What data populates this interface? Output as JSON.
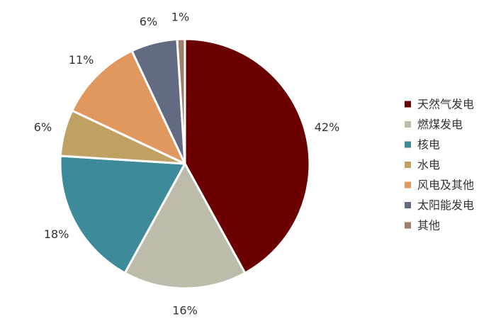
{
  "chart_data": {
    "type": "pie",
    "start_angle_deg": 0,
    "direction": "clockwise",
    "legend_position": "right",
    "categories": [
      "天然气发电",
      "燃煤发电",
      "核电",
      "水电",
      "风电及其他",
      "太阳能发电",
      "其他"
    ],
    "values": [
      42,
      16,
      18,
      6,
      11,
      6,
      1
    ],
    "value_labels": [
      "42%",
      "16%",
      "18%",
      "6%",
      "11%",
      "6%",
      "1%"
    ],
    "colors": [
      "#6b0000",
      "#bdbcaa",
      "#3d8a9b",
      "#c1a163",
      "#e0985e",
      "#636b82",
      "#a07e6c"
    ]
  }
}
